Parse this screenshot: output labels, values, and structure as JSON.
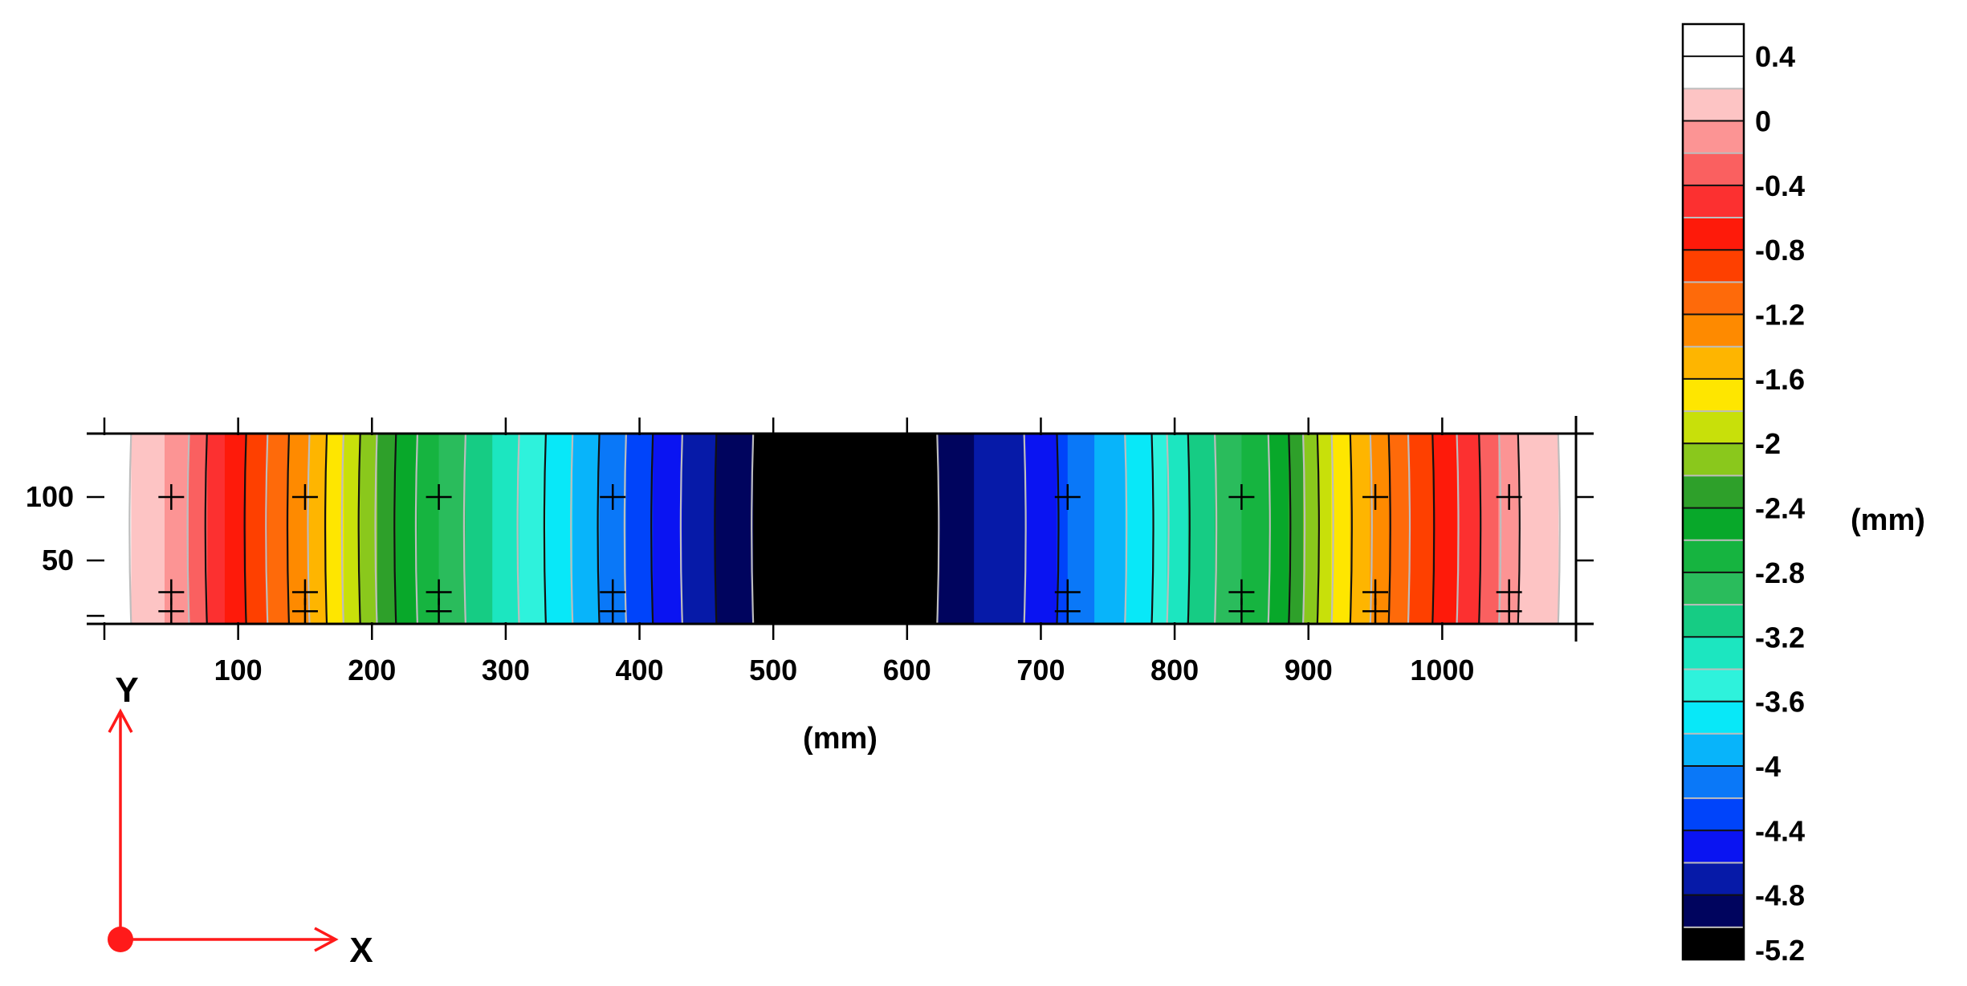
{
  "chart_data": {
    "type": "heatmap",
    "subtype": "filled-contour",
    "x_axis": {
      "unit_label": "(mm)",
      "ticks": [
        100,
        200,
        300,
        400,
        500,
        600,
        700,
        800,
        900,
        1000
      ],
      "range": [
        0,
        1100
      ]
    },
    "y_axis": {
      "ticks": [
        50,
        100
      ],
      "range": [
        0,
        150
      ]
    },
    "colorbar": {
      "unit_label": "(mm)",
      "levels": [
        0.4,
        0,
        -0.4,
        -0.8,
        -1.2,
        -1.6,
        -2,
        -2.4,
        -2.8,
        -3.2,
        -3.6,
        -4,
        -4.4,
        -4.8,
        -5.2
      ],
      "level_labels": [
        "0.4",
        "0",
        "-0.4",
        "-0.8",
        "-1.2",
        "-1.6",
        "-2",
        "-2.4",
        "-2.8",
        "-3.2",
        "-3.6",
        "-4",
        "-4.4",
        "-4.8",
        "-5.2"
      ],
      "bands": [
        {
          "from": 0.6,
          "to": 0.4,
          "color": "#ffffff"
        },
        {
          "from": 0.4,
          "to": 0.2,
          "color": "#ffffff"
        },
        {
          "from": 0.2,
          "to": 0.0,
          "color": "#fdc4c4"
        },
        {
          "from": 0.0,
          "to": -0.2,
          "color": "#fc9494"
        },
        {
          "from": -0.2,
          "to": -0.4,
          "color": "#fa6060"
        },
        {
          "from": -0.4,
          "to": -0.6,
          "color": "#fc3030"
        },
        {
          "from": -0.6,
          "to": -0.8,
          "color": "#fe1a0a"
        },
        {
          "from": -0.8,
          "to": -1.0,
          "color": "#fe4000"
        },
        {
          "from": -1.0,
          "to": -1.2,
          "color": "#fe6a0a"
        },
        {
          "from": -1.2,
          "to": -1.4,
          "color": "#fe8a00"
        },
        {
          "from": -1.4,
          "to": -1.6,
          "color": "#feb500"
        },
        {
          "from": -1.6,
          "to": -1.8,
          "color": "#fee600"
        },
        {
          "from": -1.8,
          "to": -2.0,
          "color": "#c8e00a"
        },
        {
          "from": -2.0,
          "to": -2.2,
          "color": "#8ac81c"
        },
        {
          "from": -2.2,
          "to": -2.4,
          "color": "#2ea02a"
        },
        {
          "from": -2.4,
          "to": -2.6,
          "color": "#08a82a"
        },
        {
          "from": -2.6,
          "to": -2.8,
          "color": "#16b440"
        },
        {
          "from": -2.8,
          "to": -3.0,
          "color": "#2abc5c"
        },
        {
          "from": -3.0,
          "to": -3.2,
          "color": "#16cc84"
        },
        {
          "from": -3.2,
          "to": -3.4,
          "color": "#1ce6c0"
        },
        {
          "from": -3.4,
          "to": -3.6,
          "color": "#2ef2dc"
        },
        {
          "from": -3.6,
          "to": -3.8,
          "color": "#08e8f8"
        },
        {
          "from": -3.8,
          "to": -4.0,
          "color": "#08b4fa"
        },
        {
          "from": -4.0,
          "to": -4.2,
          "color": "#0a78f8"
        },
        {
          "from": -4.2,
          "to": -4.4,
          "color": "#0044fa"
        },
        {
          "from": -4.4,
          "to": -4.6,
          "color": "#0a14f2"
        },
        {
          "from": -4.6,
          "to": -4.8,
          "color": "#061aa8"
        },
        {
          "from": -4.8,
          "to": -5.0,
          "color": "#00045e"
        },
        {
          "from": -5.0,
          "to": -5.2,
          "color": "#000000"
        }
      ]
    },
    "field": {
      "x": [
        0,
        30,
        45,
        60,
        90,
        130,
        150,
        160,
        210,
        230,
        250,
        290,
        320,
        380,
        420,
        450,
        480,
        500,
        550,
        600,
        630,
        650,
        680,
        710,
        720,
        740,
        780,
        800,
        850,
        880,
        920,
        950,
        970,
        1020,
        1050,
        1060,
        1080,
        1100
      ],
      "z": [
        0.3,
        0.15,
        0.0,
        -0.15,
        -0.6,
        -1.1,
        -1.35,
        -1.5,
        -2.3,
        -2.55,
        -2.8,
        -3.2,
        -3.5,
        -4.1,
        -4.5,
        -4.75,
        -4.95,
        -5.15,
        -5.4,
        -5.15,
        -4.95,
        -4.8,
        -4.65,
        -4.45,
        -4.2,
        -4.0,
        -3.65,
        -3.3,
        -2.8,
        -2.5,
        -1.75,
        -1.35,
        -1.05,
        -0.5,
        -0.1,
        0.05,
        0.15,
        0.3
      ]
    },
    "markers": {
      "x": [
        50,
        150,
        250,
        380,
        720,
        850,
        950,
        1050
      ],
      "y": [
        10,
        25,
        100
      ]
    },
    "coordinate_system": {
      "axis_labels": [
        "X",
        "Y"
      ]
    }
  }
}
